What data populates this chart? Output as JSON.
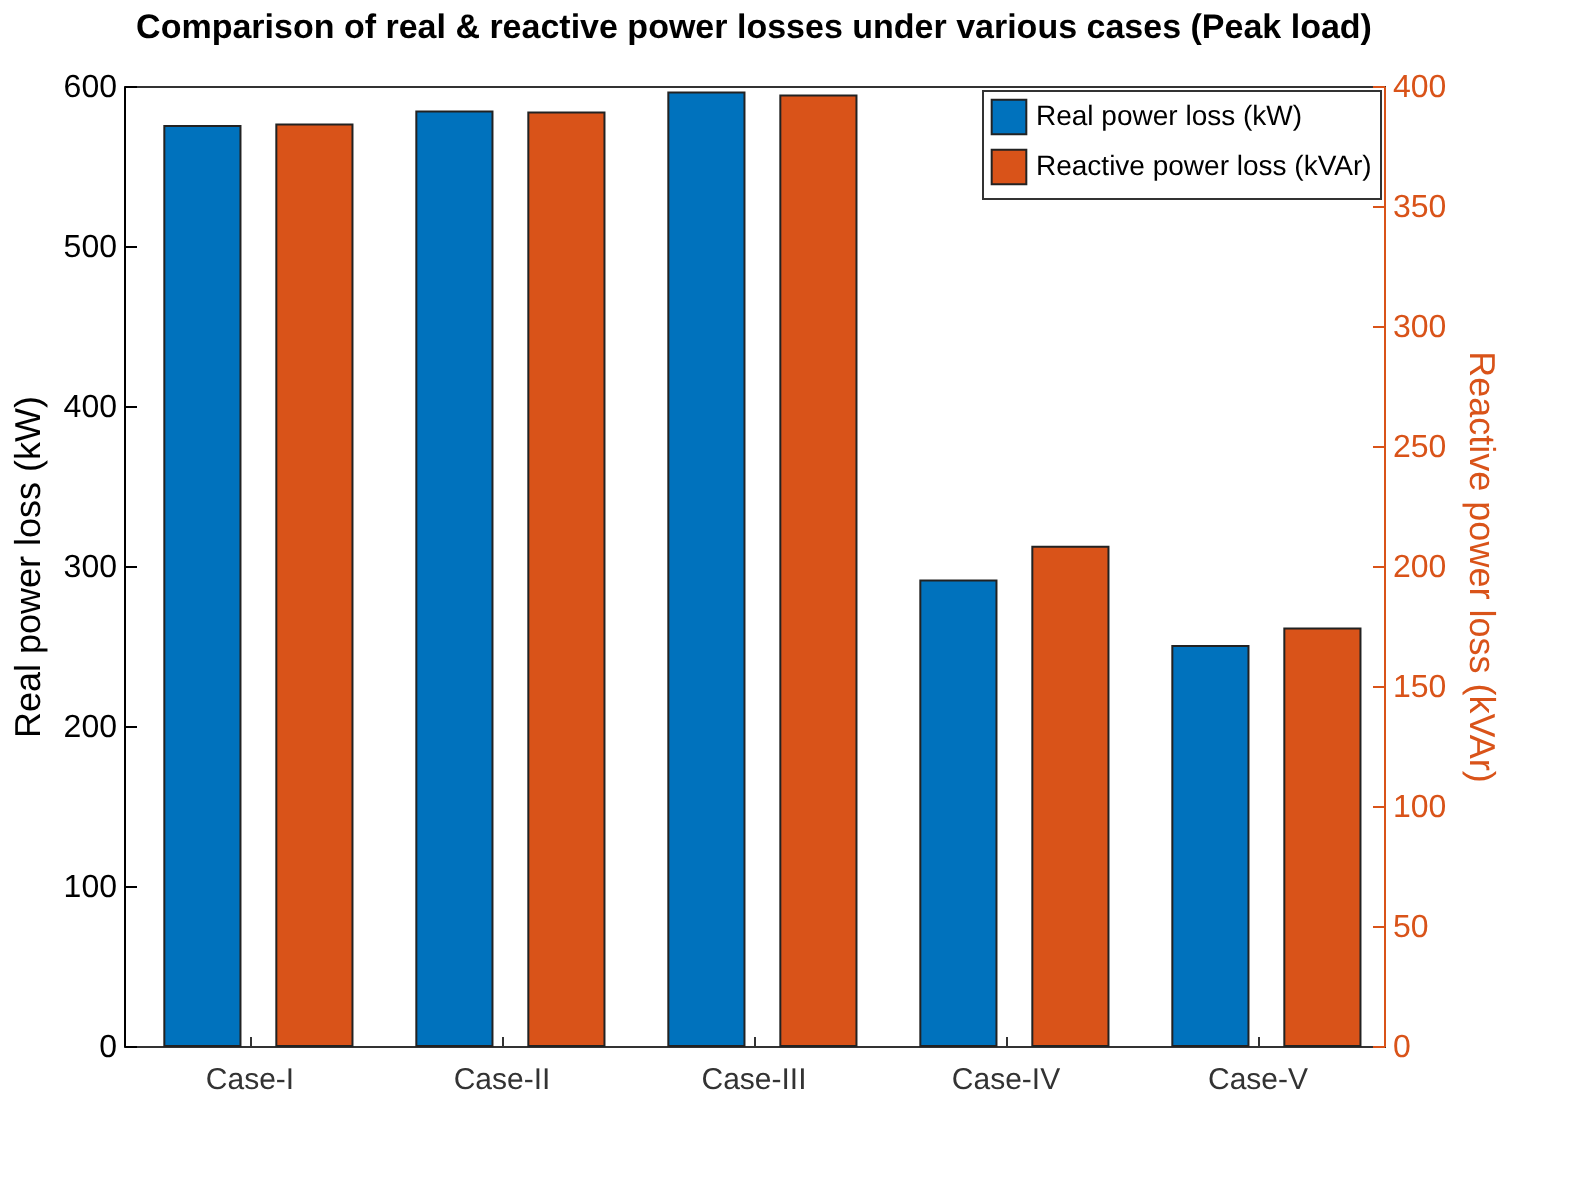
{
  "chart_data": {
    "type": "bar",
    "title": "Comparison of real & reactive power losses under various cases (Peak load)",
    "categories": [
      "Case-I",
      "Case-II",
      "Case-III",
      "Case-IV",
      "Case-V"
    ],
    "series": [
      {
        "name": "Real power loss (kW)",
        "color": "#0072bd",
        "values": [
          575,
          584,
          596,
          291,
          250
        ]
      },
      {
        "name": "Reactive power loss (kVAr)",
        "color": "#d95319",
        "axis": "y2",
        "values": [
          384,
          389,
          396,
          208,
          174
        ]
      }
    ],
    "ylabel": "Real power loss (kW)",
    "y2label": "Reactive power loss (kVAr)",
    "ylim": [
      0,
      600
    ],
    "yticks": [
      0,
      100,
      200,
      300,
      400,
      500,
      600
    ],
    "y2lim": [
      0,
      400
    ],
    "y2ticks": [
      0,
      50,
      100,
      150,
      200,
      250,
      300,
      350,
      400
    ],
    "legend": "top right",
    "grid": false
  }
}
